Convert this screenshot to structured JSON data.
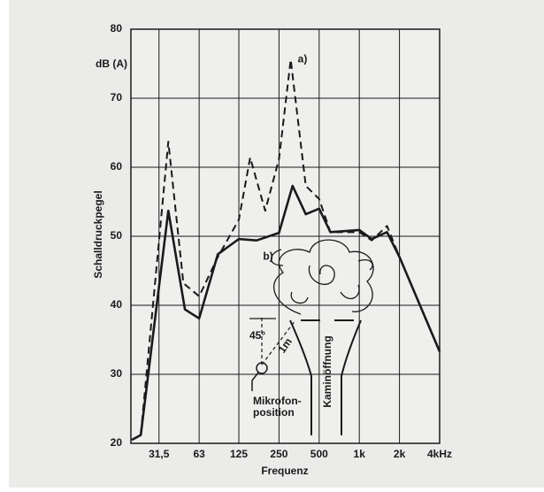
{
  "chart_data": {
    "type": "line",
    "y_unit": "dB (A)",
    "y_label": "Schalldruckpegel",
    "x_label": "Frequenz",
    "xscale": "log",
    "grid": true,
    "xlim": [
      19.4,
      4000
    ],
    "ylim": [
      20,
      80
    ],
    "xticks": [
      {
        "value": 31.5,
        "label": "31,5"
      },
      63,
      125,
      250,
      500,
      {
        "value": 1000,
        "label": "1k"
      },
      {
        "value": 2000,
        "label": "2k"
      },
      {
        "value": 4000,
        "label": "4kHz"
      }
    ],
    "yticks": [
      20,
      30,
      40,
      50,
      60,
      70,
      80
    ],
    "series": [
      {
        "name": "a)",
        "color": "#1a1a1a",
        "style": "dashed",
        "x": [
          19.7,
          23,
          37,
          48,
          63,
          87,
          125,
          152,
          197,
          250,
          306,
          397,
          500,
          607,
          1000,
          1240,
          1613,
          2000,
          4000
        ],
        "values": [
          20.5,
          21.2,
          63.7,
          43.2,
          41.3,
          47,
          52.4,
          61.4,
          53.7,
          61.2,
          75.6,
          57.3,
          55.4,
          50.6,
          50.6,
          49.4,
          51.5,
          47,
          33.3
        ]
      },
      {
        "name": "b)",
        "color": "#1a1a1a",
        "style": "solid",
        "x": [
          19.7,
          23,
          37,
          49.3,
          63,
          87,
          125,
          170,
          250,
          316,
          397,
          500,
          607,
          1000,
          1240,
          1613,
          2000,
          4000
        ],
        "values": [
          20.5,
          21.2,
          53.7,
          39.4,
          38.1,
          47.4,
          49.6,
          49.4,
          50.5,
          57.3,
          53.2,
          54,
          50.6,
          50.9,
          49.6,
          50.6,
          47,
          33.3
        ]
      }
    ],
    "annotations": [
      "45°",
      "1m",
      "Mikrofon-",
      "position",
      "Kaminöffnung"
    ]
  }
}
